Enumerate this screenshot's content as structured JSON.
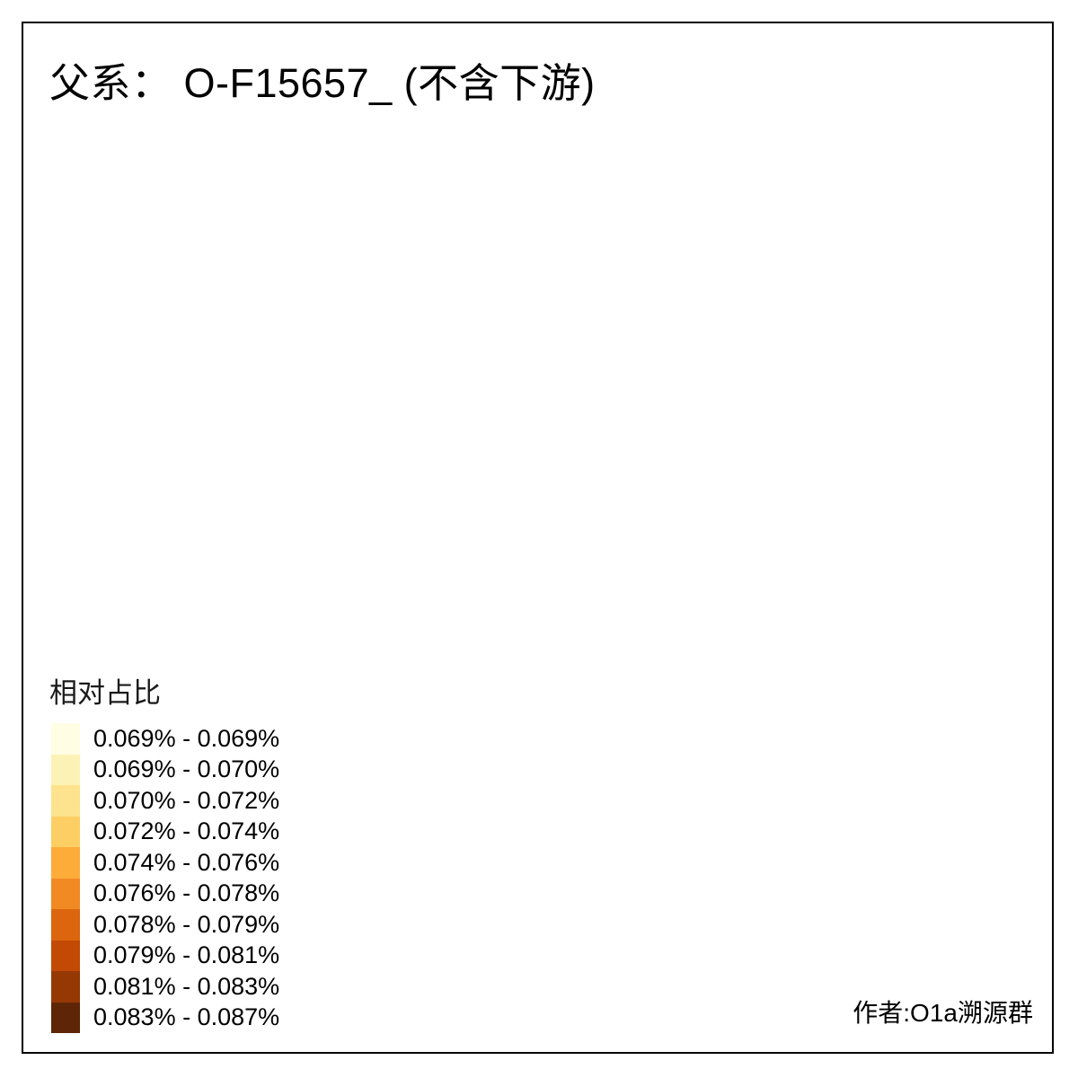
{
  "title": "父系： O-F15657_ (不含下游)",
  "author": "作者:O1a溯源群",
  "legend": {
    "title": "相对占比",
    "classes": [
      {
        "label": "0.069% - 0.069%",
        "color": "#FFFDE3"
      },
      {
        "label": "0.069% - 0.070%",
        "color": "#FCF2B5"
      },
      {
        "label": "0.070% - 0.072%",
        "color": "#FDE38D"
      },
      {
        "label": "0.072% - 0.074%",
        "color": "#FDCE63"
      },
      {
        "label": "0.074% - 0.076%",
        "color": "#FDAC3A"
      },
      {
        "label": "0.076% - 0.078%",
        "color": "#F28A24"
      },
      {
        "label": "0.078% - 0.079%",
        "color": "#DB660E"
      },
      {
        "label": "0.079% - 0.081%",
        "color": "#C34A04"
      },
      {
        "label": "0.081% - 0.083%",
        "color": "#963804"
      },
      {
        "label": "0.083% - 0.087%",
        "color": "#5E2506"
      }
    ]
  },
  "map": {
    "background": "#ffffff",
    "frame_color": "#000000",
    "land_fill": "#d4d4d4",
    "border_color": "#7d7d7d",
    "islet_color": "#8a8a8a",
    "highlights": [
      {
        "value_range": "0.083% - 0.087%",
        "class_index": 9
      },
      {
        "value_range": "0.069% - 0.069%",
        "class_index": 0
      }
    ]
  }
}
